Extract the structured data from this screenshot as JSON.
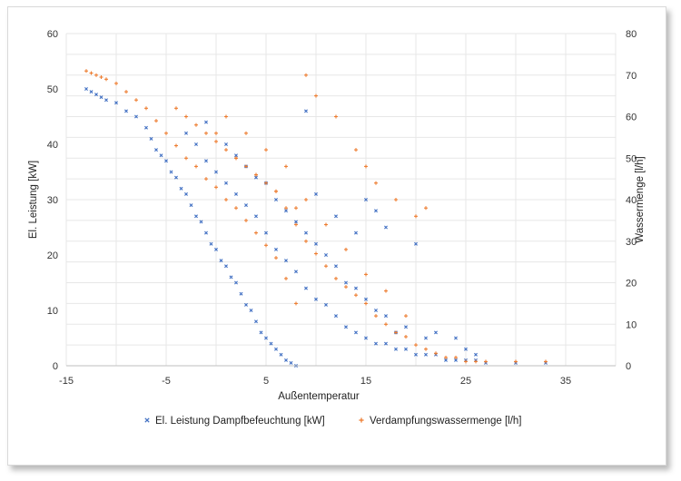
{
  "chart_data": {
    "type": "scatter",
    "xlabel": "Außentemperatur",
    "ylabel": "El. Leistung [kW]",
    "y2label": "Wassermenge [l/h]",
    "xlim": [
      -15,
      40
    ],
    "ylim": [
      0,
      60
    ],
    "y2lim": [
      0,
      80
    ],
    "x_ticks": [
      "-15",
      "-5",
      "5",
      "15",
      "25",
      "35"
    ],
    "y_ticks": [
      "0",
      "10",
      "20",
      "30",
      "40",
      "50",
      "60"
    ],
    "y2_ticks": [
      "0",
      "10",
      "20",
      "30",
      "40",
      "50",
      "60",
      "70",
      "80"
    ],
    "grid": true,
    "legend_position": "bottom",
    "series": [
      {
        "name": "El. Leistung Dampfbefeuchtung [kW]",
        "axis": "left",
        "color": "#4472c4",
        "marker": "x",
        "x": [
          -13,
          -12.5,
          -12,
          -11.5,
          -11,
          -10,
          -9,
          -8,
          -7,
          -6.5,
          -6,
          -5.5,
          -5,
          -4.5,
          -4,
          -3.5,
          -3,
          -2.5,
          -2,
          -1.5,
          -1,
          -0.5,
          0,
          0.5,
          1,
          1.5,
          2,
          2.5,
          3,
          3.5,
          4,
          4.5,
          5,
          5.5,
          6,
          6.5,
          7,
          7.5,
          8,
          -3,
          -2,
          -1,
          0,
          1,
          2,
          3,
          4,
          5,
          6,
          7,
          8,
          9,
          10,
          11,
          12,
          13,
          14,
          15,
          16,
          17,
          18,
          19,
          20,
          21,
          22,
          23,
          24,
          25,
          26,
          27,
          30,
          33,
          -1,
          1,
          3,
          5,
          7,
          9,
          11,
          13,
          15,
          17,
          19,
          21,
          2,
          4,
          6,
          8,
          10,
          12,
          14,
          16,
          18,
          9,
          10,
          12,
          14,
          15,
          16,
          17,
          20,
          22,
          24,
          25,
          26
        ],
        "y": [
          50,
          49.5,
          49,
          48.5,
          48,
          47.5,
          46,
          45,
          43,
          41,
          39,
          38,
          37,
          35,
          34,
          32,
          31,
          29,
          27,
          26,
          24,
          22,
          21,
          19,
          18,
          16,
          15,
          13,
          11,
          10,
          8,
          6,
          5,
          4,
          3,
          2,
          1,
          0.5,
          0,
          42,
          40,
          37,
          35,
          33,
          31,
          29,
          27,
          24,
          21,
          19,
          17,
          14,
          12,
          11,
          9,
          7,
          6,
          5,
          4,
          4,
          3,
          3,
          2,
          2,
          2,
          1,
          1,
          1,
          1,
          0.5,
          0.5,
          0.5,
          44,
          40,
          36,
          33,
          28,
          24,
          20,
          15,
          12,
          9,
          7,
          5,
          38,
          34,
          30,
          26,
          22,
          18,
          14,
          10,
          6,
          46,
          31,
          27,
          24,
          30,
          28,
          25,
          22,
          6,
          5,
          3,
          2
        ]
      },
      {
        "name": "Verdampfungswassermenge [l/h]",
        "axis": "right",
        "color": "#ed7d31",
        "marker": "+",
        "x": [
          -13,
          -12.5,
          -12,
          -11.5,
          -11,
          -10,
          -9,
          -8,
          -7,
          -6,
          -5,
          -4,
          -3,
          -2,
          -1,
          0,
          1,
          2,
          3,
          4,
          5,
          6,
          7,
          8,
          -4,
          -3,
          -2,
          -1,
          0,
          1,
          2,
          3,
          4,
          5,
          6,
          7,
          8,
          9,
          10,
          11,
          12,
          13,
          14,
          15,
          16,
          17,
          18,
          19,
          20,
          21,
          22,
          23,
          24,
          25,
          26,
          27,
          30,
          33,
          0,
          2,
          4,
          6,
          8,
          9,
          10,
          12,
          14,
          15,
          16,
          18,
          20,
          21,
          1,
          3,
          5,
          7,
          9,
          11,
          13,
          15,
          17,
          19
        ],
        "y": [
          71,
          70.5,
          70,
          69.5,
          69,
          68,
          66,
          64,
          62,
          59,
          56,
          53,
          50,
          48,
          45,
          43,
          40,
          38,
          35,
          32,
          29,
          26,
          21,
          15,
          62,
          60,
          58,
          56,
          54,
          52,
          50,
          48,
          46,
          44,
          42,
          38,
          34,
          30,
          27,
          24,
          21,
          19,
          17,
          15,
          12,
          10,
          8,
          7,
          5,
          4,
          3,
          2,
          2,
          1,
          1,
          1,
          1,
          1,
          56,
          50,
          46,
          42,
          38,
          70,
          65,
          60,
          52,
          48,
          44,
          40,
          36,
          38,
          60,
          56,
          52,
          48,
          40,
          34,
          28,
          22,
          18,
          12
        ]
      }
    ]
  }
}
